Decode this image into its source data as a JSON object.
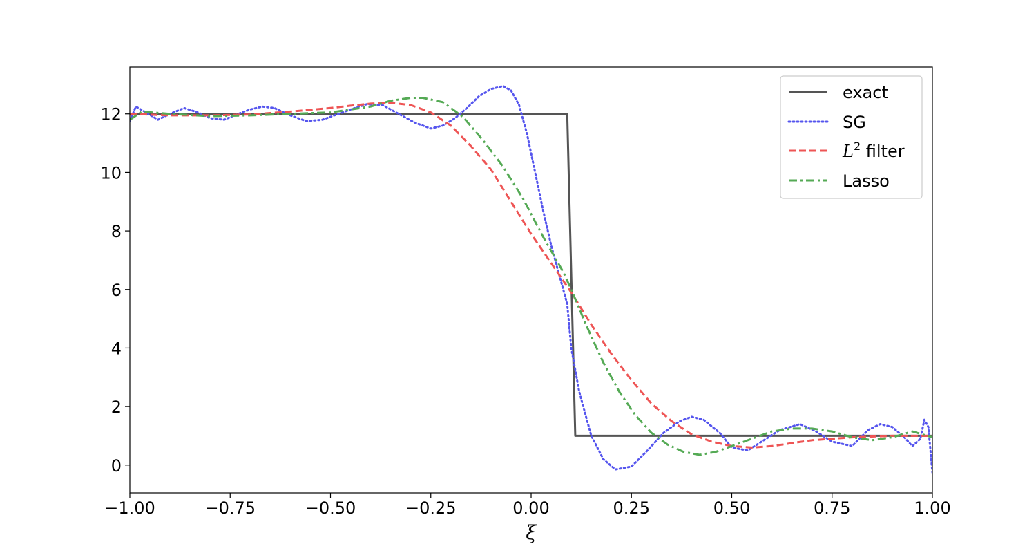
{
  "chart_data": {
    "type": "line",
    "xlabel": "ξ",
    "ylabel": "",
    "xlim": [
      -1.0,
      1.0
    ],
    "ylim": [
      -0.95,
      13.6
    ],
    "xticks": [
      -1.0,
      -0.75,
      -0.5,
      -0.25,
      0.0,
      0.25,
      0.5,
      0.75,
      1.0
    ],
    "xtick_labels": [
      "−1.00",
      "−0.75",
      "−0.50",
      "−0.25",
      "0.00",
      "0.25",
      "0.50",
      "0.75",
      "1.00"
    ],
    "yticks": [
      0,
      2,
      4,
      6,
      8,
      10,
      12
    ],
    "ytick_labels": [
      "0",
      "2",
      "4",
      "6",
      "8",
      "10",
      "12"
    ],
    "grid": false,
    "legend_position": "top-right",
    "series": [
      {
        "name": "exact",
        "legend_label": "exact",
        "color": "#555555",
        "style": "solid",
        "x": [
          -1.0,
          0.09,
          0.11,
          1.0
        ],
        "y": [
          12,
          12,
          1,
          1
        ]
      },
      {
        "name": "SG",
        "legend_label": "SG",
        "color": "#5555ee",
        "style": "dotted",
        "x": [
          -1.0,
          -0.985,
          -0.96,
          -0.93,
          -0.9,
          -0.865,
          -0.83,
          -0.8,
          -0.765,
          -0.73,
          -0.7,
          -0.67,
          -0.64,
          -0.6,
          -0.56,
          -0.52,
          -0.49,
          -0.45,
          -0.41,
          -0.37,
          -0.33,
          -0.29,
          -0.25,
          -0.22,
          -0.19,
          -0.16,
          -0.13,
          -0.1,
          -0.07,
          -0.05,
          -0.03,
          -0.01,
          0.01,
          0.03,
          0.05,
          0.07,
          0.09,
          0.1,
          0.12,
          0.15,
          0.18,
          0.21,
          0.25,
          0.29,
          0.33,
          0.37,
          0.4,
          0.43,
          0.47,
          0.5,
          0.54,
          0.58,
          0.62,
          0.67,
          0.71,
          0.75,
          0.8,
          0.84,
          0.87,
          0.9,
          0.93,
          0.95,
          0.97,
          0.98,
          0.99,
          1.0
        ],
        "y": [
          11.75,
          12.25,
          12.05,
          11.8,
          12.0,
          12.2,
          12.05,
          11.85,
          11.8,
          12.0,
          12.15,
          12.25,
          12.2,
          11.95,
          11.75,
          11.8,
          11.95,
          12.15,
          12.33,
          12.3,
          12.0,
          11.7,
          11.5,
          11.6,
          11.85,
          12.2,
          12.6,
          12.85,
          12.95,
          12.8,
          12.3,
          11.3,
          10.0,
          8.7,
          7.5,
          6.5,
          5.5,
          4.0,
          2.5,
          1.0,
          0.2,
          -0.15,
          -0.05,
          0.5,
          1.1,
          1.5,
          1.65,
          1.55,
          1.1,
          0.6,
          0.5,
          0.85,
          1.2,
          1.4,
          1.15,
          0.8,
          0.65,
          1.2,
          1.4,
          1.3,
          0.95,
          0.65,
          0.9,
          1.55,
          1.3,
          -0.25
        ]
      },
      {
        "name": "L2 filter",
        "legend_label_main": "L",
        "legend_label_sup": "2",
        "legend_label_rest": " filter",
        "color": "#ee5555",
        "style": "dashed",
        "x": [
          -1.0,
          -0.9,
          -0.8,
          -0.7,
          -0.6,
          -0.5,
          -0.45,
          -0.4,
          -0.35,
          -0.3,
          -0.25,
          -0.2,
          -0.15,
          -0.1,
          -0.05,
          0.0,
          0.05,
          0.1,
          0.15,
          0.2,
          0.25,
          0.3,
          0.35,
          0.4,
          0.45,
          0.5,
          0.55,
          0.6,
          0.65,
          0.7,
          0.75,
          0.8,
          0.9,
          1.0
        ],
        "y": [
          12.0,
          11.95,
          11.95,
          11.98,
          12.08,
          12.2,
          12.28,
          12.35,
          12.38,
          12.3,
          12.05,
          11.6,
          10.9,
          10.1,
          9.0,
          7.9,
          6.9,
          5.9,
          4.8,
          3.8,
          2.9,
          2.1,
          1.5,
          1.05,
          0.8,
          0.65,
          0.6,
          0.65,
          0.75,
          0.85,
          0.9,
          0.95,
          1.0,
          1.0
        ]
      },
      {
        "name": "Lasso",
        "legend_label": "Lasso",
        "color": "#55aa55",
        "style": "dashdot",
        "x": [
          -1.0,
          -0.97,
          -0.9,
          -0.8,
          -0.7,
          -0.6,
          -0.5,
          -0.4,
          -0.35,
          -0.3,
          -0.27,
          -0.22,
          -0.17,
          -0.12,
          -0.07,
          -0.02,
          0.03,
          0.08,
          0.1,
          0.14,
          0.18,
          0.22,
          0.26,
          0.3,
          0.34,
          0.38,
          0.42,
          0.46,
          0.5,
          0.55,
          0.6,
          0.65,
          0.7,
          0.75,
          0.8,
          0.85,
          0.9,
          0.95,
          1.0
        ],
        "y": [
          11.8,
          12.08,
          12.0,
          11.92,
          11.95,
          12.0,
          12.05,
          12.25,
          12.45,
          12.55,
          12.55,
          12.4,
          11.9,
          11.1,
          10.2,
          9.1,
          7.8,
          6.6,
          6.0,
          4.7,
          3.5,
          2.5,
          1.7,
          1.1,
          0.7,
          0.45,
          0.35,
          0.45,
          0.65,
          0.9,
          1.15,
          1.25,
          1.25,
          1.15,
          0.95,
          0.85,
          0.95,
          1.15,
          0.95
        ]
      }
    ]
  }
}
